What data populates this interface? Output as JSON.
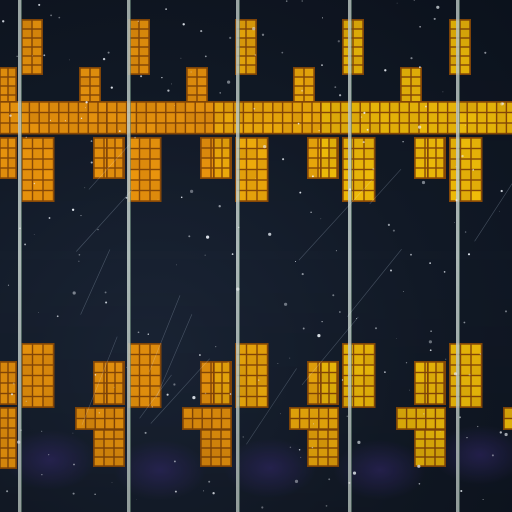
{
  "image": {
    "subject": "tiled-solar-panel-pattern",
    "columns": 5,
    "tile_rows": 2
  },
  "colors": {
    "background": "#121a27",
    "background_dark": "#0c131e",
    "panel_orange": "#f29a0e",
    "panel_amber": "#f7b20c",
    "panel_yellow": "#f6c20a",
    "cell_line": "#8a4a08",
    "divider": "#c7d4cf",
    "star": "#e8eef6",
    "haze_purple": "#3a2d7a"
  }
}
